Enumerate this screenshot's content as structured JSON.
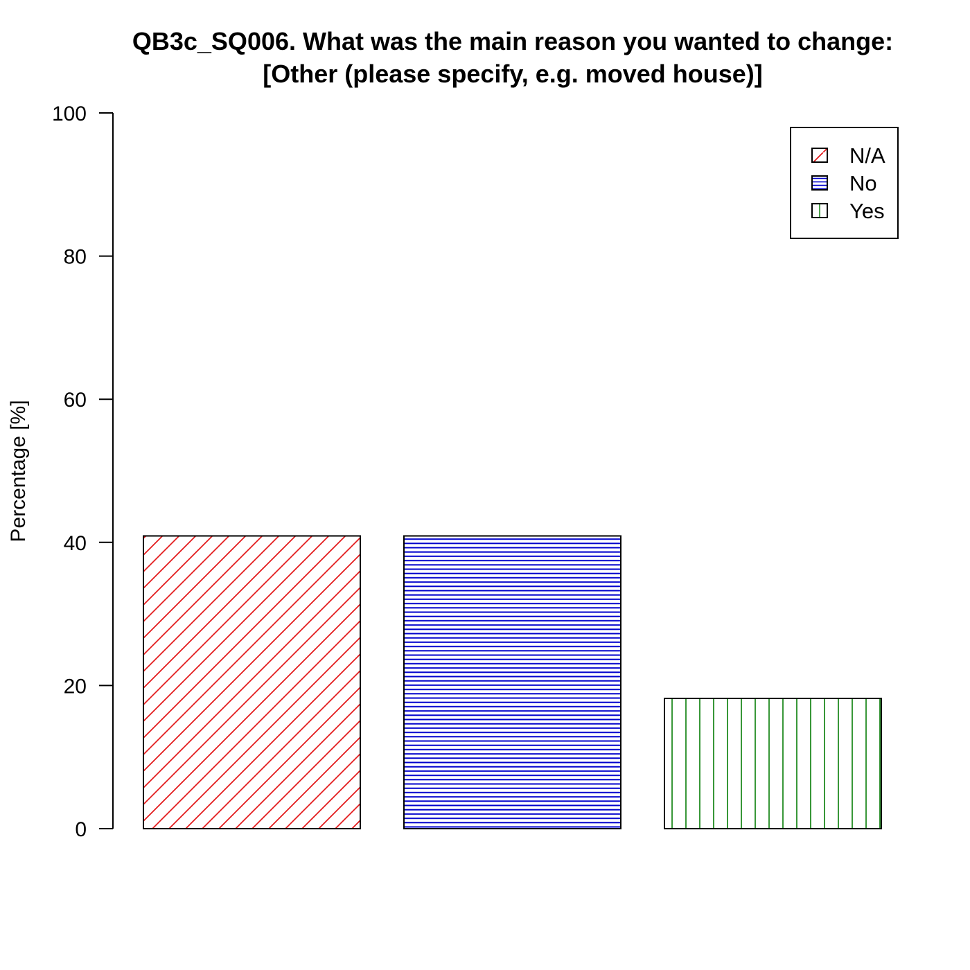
{
  "chart_data": {
    "type": "bar",
    "title_lines": [
      "QB3c_SQ006. What was the main reason you wanted to change:",
      "[Other (please specify, e.g. moved house)]"
    ],
    "ylabel": "Percentage [%]",
    "xlabel": "",
    "ylim": [
      0,
      100
    ],
    "yticks": [
      0,
      20,
      40,
      60,
      80,
      100
    ],
    "categories": [
      "N/A",
      "No",
      "Yes"
    ],
    "values": [
      40.9,
      40.9,
      18.2
    ],
    "colors": [
      "#e31a1c",
      "#0000cc",
      "#228b22"
    ],
    "patterns": [
      "diagonal",
      "horizontal",
      "vertical"
    ],
    "legend": {
      "position": "top-right",
      "entries": [
        "N/A",
        "No",
        "Yes"
      ]
    },
    "grid": false
  }
}
